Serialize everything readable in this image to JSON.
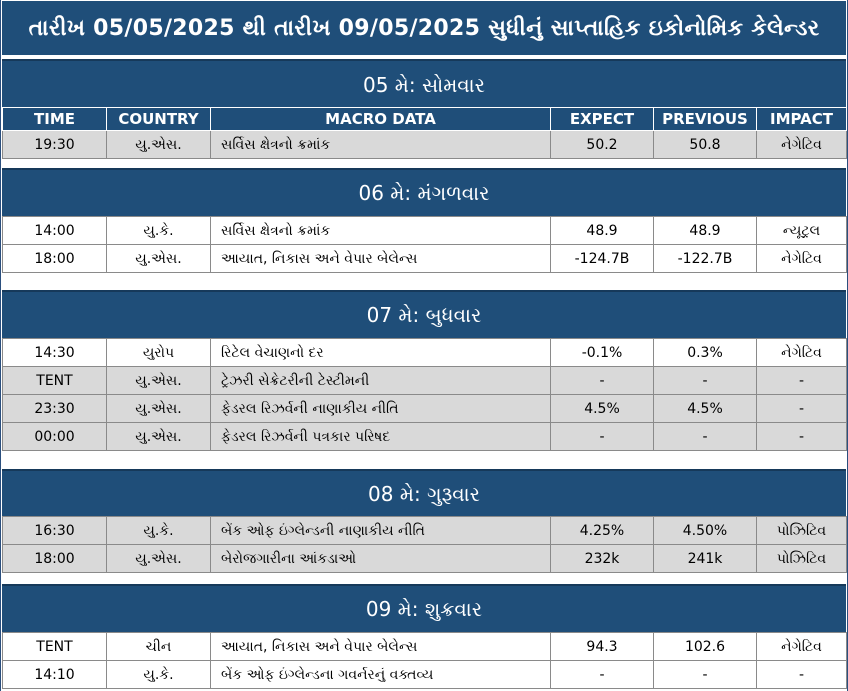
{
  "title": "તારીખ 05/05/2025 થી તારીખ 09/05/2025 સુધીનું સાપ્તાહિક ઇકોનોમિક કેલેન્ડર",
  "columns": {
    "time": "TIME",
    "country": "COUNTRY",
    "macro": "MACRO DATA",
    "expect": "EXPECT",
    "previous": "PREVIOUS",
    "impact": "IMPACT"
  },
  "days": [
    {
      "label": "05 મે: સોમવાર",
      "rows": [
        {
          "time": "19:30",
          "country": "યુ.એસ.",
          "macro": "સર્વિસ ક્ષેત્રનો ક્રમાંક",
          "expect": "50.2",
          "previous": "50.8",
          "impact": "નેગેટિવ"
        }
      ]
    },
    {
      "label": "06 મે: મંગળવાર",
      "rows": [
        {
          "time": "14:00",
          "country": "યુ.કે.",
          "macro": "સર્વિસ ક્ષેત્રનો ક્રમાંક",
          "expect": "48.9",
          "previous": "48.9",
          "impact": "ન્યૂટ્રલ"
        },
        {
          "time": "18:00",
          "country": "યુ.એસ.",
          "macro": "આયાત, નિકાસ અને વેપાર બેલેન્સ",
          "expect": "-124.7B",
          "previous": "-122.7B",
          "impact": "નેગેટિવ"
        }
      ]
    },
    {
      "label": "07 મે: બુધવાર",
      "rows": [
        {
          "time": "14:30",
          "country": "યુરોપ",
          "macro": "રિટેલ વેચાણનો દર",
          "expect": "-0.1%",
          "previous": "0.3%",
          "impact": "નેગેટિવ"
        },
        {
          "time": "TENT",
          "country": "યુ.એસ.",
          "macro": "ટ્રેઝરી સેક્રેટરીની ટેસ્ટીમની",
          "expect": "-",
          "previous": "-",
          "impact": "-"
        },
        {
          "time": "23:30",
          "country": "યુ.એસ.",
          "macro": "ફેડરલ રિઝર્વની નાણાકીય નીતિ",
          "expect": "4.5%",
          "previous": "4.5%",
          "impact": "-"
        },
        {
          "time": "00:00",
          "country": "યુ.એસ.",
          "macro": "ફેડરલ રિઝર્વની પત્રકાર પરિષદ",
          "expect": "-",
          "previous": "-",
          "impact": "-"
        }
      ]
    },
    {
      "label": "08 મે: ગુરૂવાર",
      "rows": [
        {
          "time": "16:30",
          "country": "યુ.કે.",
          "macro": "બેંક ઓફ ઇંગ્લેન્ડની નાણાકીય નીતિ",
          "expect": "4.25%",
          "previous": "4.50%",
          "impact": "પોઝિટિવ"
        },
        {
          "time": "18:00",
          "country": "યુ.એસ.",
          "macro": "બેરોજગારીના આંકડાઓ",
          "expect": "232k",
          "previous": "241k",
          "impact": "પોઝિટિવ"
        }
      ]
    },
    {
      "label": "09 મે: શુક્રવાર",
      "rows": [
        {
          "time": "TENT",
          "country": "ચીન",
          "macro": "આયાત, નિકાસ અને વેપાર બેલેન્સ",
          "expect": "94.3",
          "previous": "102.6",
          "impact": "નેગેટિવ"
        },
        {
          "time": "14:10",
          "country": "યુ.કે.",
          "macro": "બેંક ઓફ ઇંગ્લેન્ડના ગવર્નરનું વક્તવ્ય",
          "expect": "-",
          "previous": "-",
          "impact": "-"
        }
      ]
    }
  ]
}
